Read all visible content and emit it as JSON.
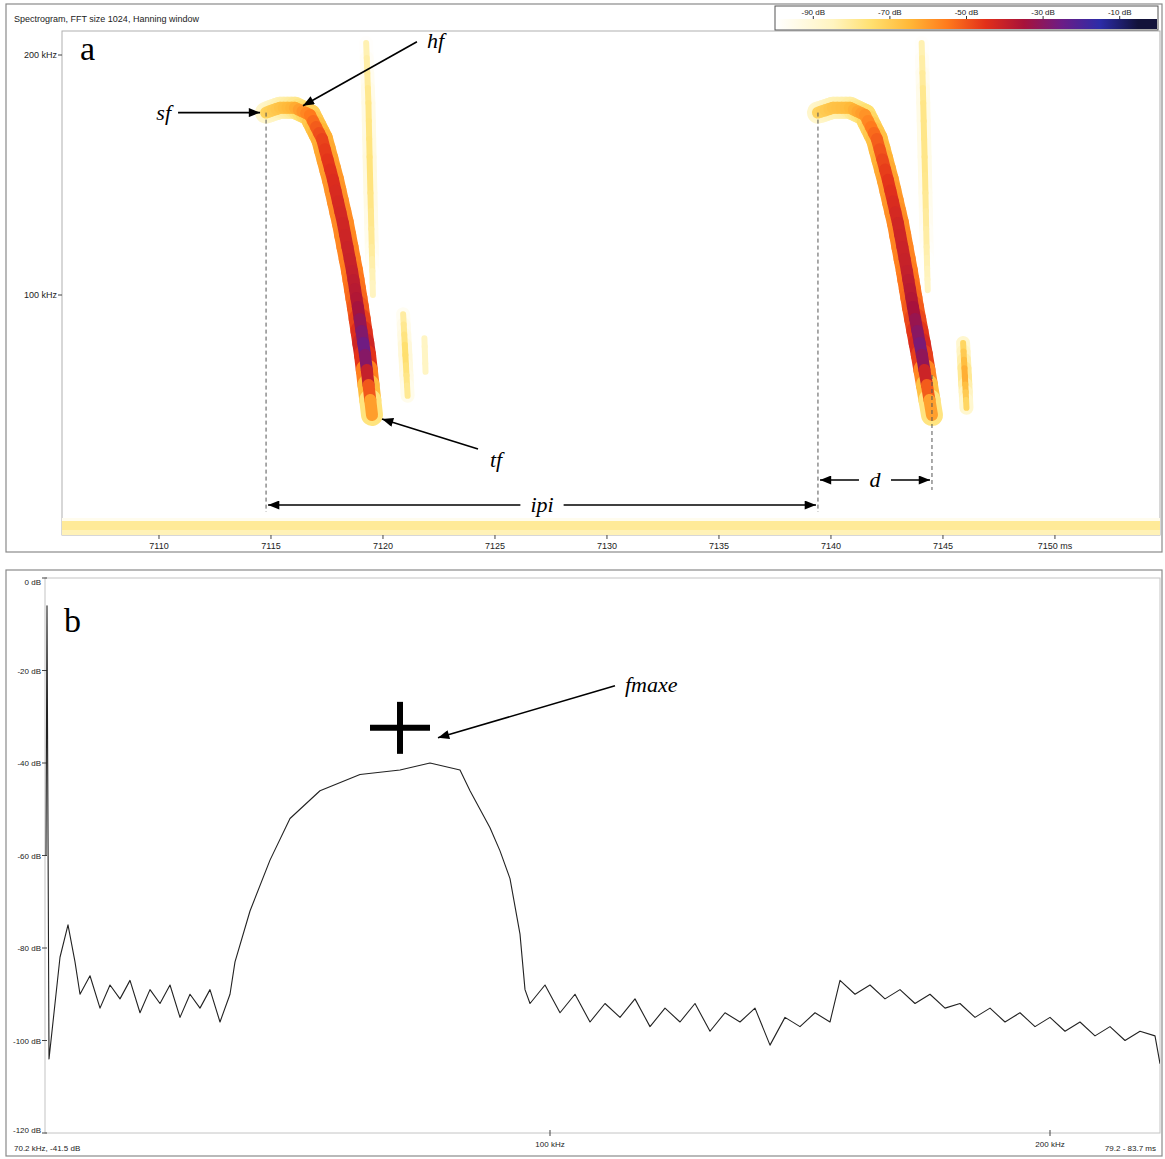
{
  "chart_data": [
    {
      "type": "spectrogram",
      "panel": "a",
      "title": "Spectrogram, FFT size 1024, Hanning window",
      "xlim": [
        7105.67,
        7154.69
      ],
      "xticks": [
        7110,
        7115,
        7120,
        7125,
        7130,
        7135,
        7140,
        7145,
        {
          "value": 7150,
          "label": "7150 ms"
        }
      ],
      "ylim": [
        0,
        210
      ],
      "yticks": [
        {
          "value": 100,
          "label": "100 kHz"
        },
        {
          "value": 200,
          "label": "200 kHz"
        }
      ],
      "color_range": [
        -100,
        0
      ],
      "color_ticks": [
        {
          "value": -90,
          "label": "-90 dB"
        },
        {
          "value": -70,
          "label": "-70 dB"
        },
        {
          "value": -50,
          "label": "-50 dB"
        },
        {
          "value": -30,
          "label": "-30 dB"
        },
        {
          "value": -10,
          "label": "-10 dB"
        }
      ],
      "series": [
        {
          "type": "noise",
          "x": [
            7105.67,
            7154.69
          ],
          "values": [
            1,
            1
          ],
          "intensity_db": [
            -84,
            -84
          ]
        },
        {
          "type": "noise",
          "x": [
            7105.67,
            7154.69
          ],
          "values": [
            4,
            4
          ],
          "intensity_db": [
            -80,
            -80
          ]
        },
        {
          "type": "echo",
          "x": [
            7119.25,
            7119.35,
            7119.42,
            7119.5,
            7119.55
          ],
          "values": [
            205,
            180,
            150,
            120,
            100
          ],
          "intensity_db": [
            -84,
            -78,
            -76,
            -80,
            -86
          ]
        },
        {
          "type": "echo",
          "x": [
            7120.9,
            7121.0,
            7121.1
          ],
          "values": [
            92,
            75,
            58
          ],
          "intensity_db": [
            -82,
            -74,
            -80
          ]
        },
        {
          "type": "echo",
          "x": [
            7121.85,
            7121.9
          ],
          "values": [
            82,
            68
          ],
          "intensity_db": [
            -86,
            -86
          ]
        },
        {
          "type": "echo",
          "x": [
            7144.05,
            7144.12,
            7144.2,
            7144.27,
            7144.32
          ],
          "values": [
            205,
            180,
            150,
            120,
            102
          ],
          "intensity_db": [
            -84,
            -78,
            -78,
            -82,
            -86
          ]
        },
        {
          "type": "echo",
          "x": [
            7145.9,
            7145.98,
            7146.05
          ],
          "values": [
            80,
            66,
            53
          ],
          "intensity_db": [
            -74,
            -62,
            -74
          ]
        },
        {
          "type": "call",
          "x": [
            7114.78,
            7115.4,
            7116.07,
            7116.74,
            7117.28,
            7117.77,
            7118.21,
            7118.62,
            7118.88,
            7119.2,
            7119.51
          ],
          "values": [
            176,
            178,
            178,
            175,
            165,
            148,
            130,
            110,
            95,
            75,
            50
          ],
          "intensity_db": [
            -72,
            -68,
            -64,
            -56,
            -48,
            -44,
            -42,
            -40,
            -36,
            -24,
            -66
          ]
        },
        {
          "type": "call",
          "x": [
            7139.42,
            7140.09,
            7140.85,
            7141.52,
            7142.05,
            7142.54,
            7142.99,
            7143.39,
            7143.66,
            7144.06,
            7144.51
          ],
          "values": [
            176,
            178,
            178,
            175,
            165,
            148,
            130,
            110,
            95,
            75,
            50
          ],
          "intensity_db": [
            -72,
            -68,
            -66,
            -60,
            -52,
            -46,
            -42,
            -40,
            -36,
            -26,
            -66
          ]
        }
      ],
      "annotations": [
        "sf",
        "hf",
        "tf",
        "ipi",
        "d"
      ]
    },
    {
      "type": "line",
      "panel": "b",
      "x": [
        -0.8,
        -0.6,
        -0.2,
        0.5,
        2,
        3.6,
        5,
        6,
        8,
        10,
        12,
        14,
        16,
        18,
        20,
        22,
        24,
        26,
        28,
        30,
        32,
        34,
        36,
        37,
        40,
        44,
        48,
        54,
        62,
        70,
        76,
        82,
        84,
        86,
        88,
        90,
        92,
        94,
        95,
        96,
        99,
        102,
        105,
        108,
        111,
        114,
        117,
        120,
        123,
        126,
        129,
        132,
        135,
        138,
        141,
        144,
        147,
        150,
        153,
        156,
        158,
        161,
        164,
        167,
        170,
        173,
        176,
        179,
        182,
        185,
        188,
        191,
        194,
        197,
        200,
        203,
        206,
        209,
        212,
        215,
        218,
        221,
        222
      ],
      "values": [
        -60,
        -6,
        -104,
        -97,
        -82,
        -75,
        -83,
        -90,
        -86,
        -93,
        -88,
        -91,
        -87,
        -94,
        -89,
        -92,
        -88,
        -95,
        -90,
        -93,
        -89,
        -96,
        -90,
        -83,
        -72,
        -61,
        -52,
        -46,
        -42.5,
        -41.5,
        -40,
        -41.5,
        -46,
        -50,
        -54,
        -59,
        -65,
        -77,
        -89,
        -92,
        -88,
        -94,
        -90,
        -96,
        -92,
        -95,
        -91,
        -97,
        -93,
        -96,
        -92,
        -98,
        -94,
        -96,
        -93,
        -101,
        -95,
        -97,
        -94,
        -96,
        -87,
        -90,
        -88,
        -91,
        -89,
        -92,
        -90,
        -93,
        -92,
        -95,
        -93,
        -96,
        -94,
        -97,
        -95,
        -98,
        -96,
        -99,
        -97,
        -100,
        -98,
        -99,
        -105
      ],
      "color": "#222222",
      "xlim": [
        -1,
        222
      ],
      "xticks": [
        {
          "value": 100,
          "label": "100 kHz"
        },
        {
          "value": 200,
          "label": "200 kHz"
        }
      ],
      "ylim": [
        -120,
        0
      ],
      "yticks": [
        {
          "value": 0,
          "label": "0 dB"
        },
        {
          "value": -20,
          "label": "-20 dB"
        },
        {
          "value": -40,
          "label": "-40 dB"
        },
        {
          "value": -60,
          "label": "-60 dB"
        },
        {
          "value": -80,
          "label": "-80 dB"
        },
        {
          "value": -100,
          "label": "-100 dB"
        },
        {
          "value": -120,
          "label": "-120 dB"
        }
      ],
      "marker_point": {
        "x": 70,
        "y": -32.4
      },
      "annotations": [
        "fmaxe",
        "70.2 kHz, -41.5 dB",
        "79.2 - 83.7 ms"
      ]
    }
  ]
}
